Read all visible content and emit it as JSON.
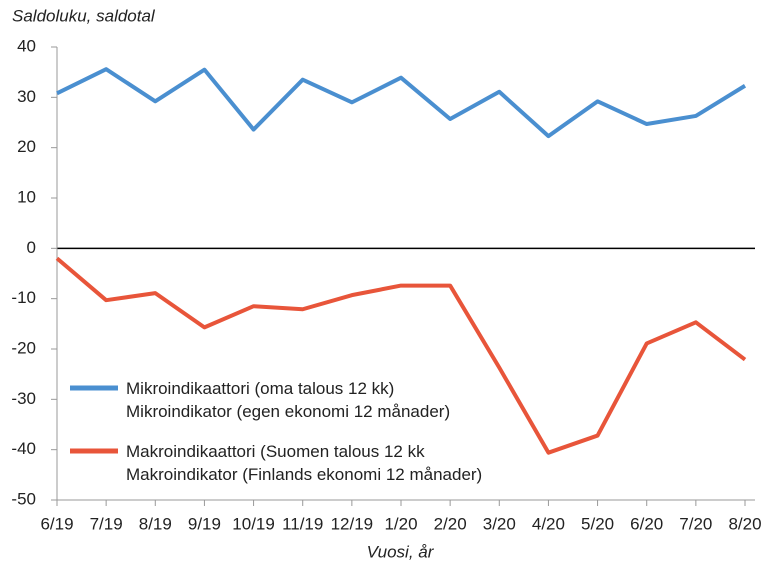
{
  "chart_data": {
    "type": "line",
    "title": "Saldoluku, saldotal",
    "x_label": "Vuosi, år",
    "categories": [
      "6/19",
      "7/19",
      "8/19",
      "9/19",
      "10/19",
      "11/19",
      "12/19",
      "1/20",
      "2/20",
      "3/20",
      "4/20",
      "5/20",
      "6/20",
      "7/20",
      "8/20"
    ],
    "series": [
      {
        "name": "Mikroindikaattori (oma talous 12 kk)\nMikroindikator (egen ekonomi 12 månader)",
        "color": "#4a8fd0",
        "values": [
          30.8,
          35.6,
          29.2,
          35.5,
          23.6,
          33.5,
          29.0,
          33.9,
          25.7,
          31.1,
          22.3,
          29.2,
          24.7,
          26.3,
          32.3
        ]
      },
      {
        "name": "Makroindikaattori (Suomen talous 12 kk\nMakroindikator (Finlands ekonomi 12 månader)",
        "color": "#e8553a",
        "values": [
          -2.0,
          -10.3,
          -8.9,
          -15.7,
          -11.5,
          -12.1,
          -9.3,
          -7.4,
          -7.4,
          -23.7,
          -40.6,
          -37.2,
          -18.9,
          -14.7,
          -22.1
        ]
      }
    ],
    "ylim": [
      -50,
      40
    ],
    "yticks": [
      -50,
      -40,
      -30,
      -20,
      -10,
      0,
      10,
      20,
      30,
      40
    ],
    "legend": "lower left"
  }
}
